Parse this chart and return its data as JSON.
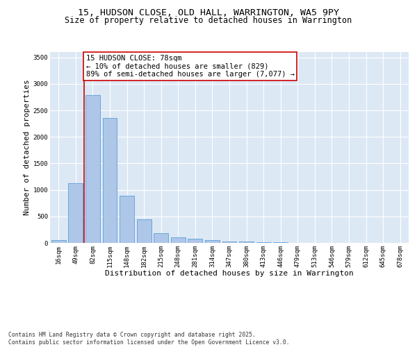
{
  "title_line1": "15, HUDSON CLOSE, OLD HALL, WARRINGTON, WA5 9PY",
  "title_line2": "Size of property relative to detached houses in Warrington",
  "xlabel": "Distribution of detached houses by size in Warrington",
  "ylabel": "Number of detached properties",
  "categories": [
    "16sqm",
    "49sqm",
    "82sqm",
    "115sqm",
    "148sqm",
    "182sqm",
    "215sqm",
    "248sqm",
    "281sqm",
    "314sqm",
    "347sqm",
    "380sqm",
    "413sqm",
    "446sqm",
    "479sqm",
    "513sqm",
    "546sqm",
    "579sqm",
    "612sqm",
    "645sqm",
    "678sqm"
  ],
  "values": [
    50,
    1120,
    2790,
    2350,
    890,
    450,
    185,
    105,
    75,
    55,
    30,
    25,
    15,
    8,
    3,
    2,
    1,
    1,
    0,
    0,
    0
  ],
  "bar_color": "#aec6e8",
  "bar_edge_color": "#5a9fd4",
  "vline_color": "#cc0000",
  "vline_index": 1.5,
  "annotation_text": "15 HUDSON CLOSE: 78sqm\n← 10% of detached houses are smaller (829)\n89% of semi-detached houses are larger (7,077) →",
  "annotation_box_color": "#ffffff",
  "annotation_edge_color": "#cc0000",
  "ylim": [
    0,
    3600
  ],
  "yticks": [
    0,
    500,
    1000,
    1500,
    2000,
    2500,
    3000,
    3500
  ],
  "bg_color": "#dde8f5",
  "footnote": "Contains HM Land Registry data © Crown copyright and database right 2025.\nContains public sector information licensed under the Open Government Licence v3.0.",
  "title_fontsize": 9.5,
  "subtitle_fontsize": 8.5,
  "axis_label_fontsize": 8,
  "tick_fontsize": 6.5,
  "annot_fontsize": 7.5,
  "footnote_fontsize": 5.8
}
